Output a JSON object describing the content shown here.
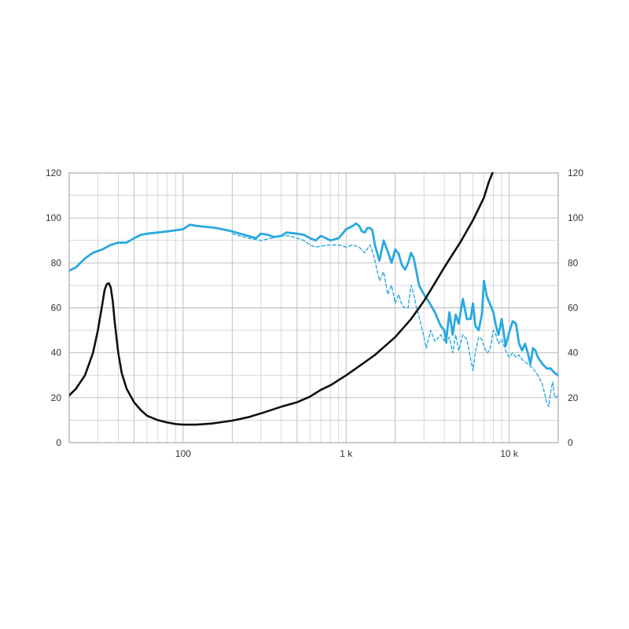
{
  "chart_data": {
    "type": "line",
    "title": "",
    "xlabel": "",
    "ylabel": "",
    "x_scale": "log",
    "xlim": [
      20,
      20000
    ],
    "ylim": [
      0,
      120
    ],
    "grid": true,
    "legend": "none",
    "x_ticks": [
      {
        "value": 100,
        "label": "100"
      },
      {
        "value": 1000,
        "label": "1 k"
      },
      {
        "value": 10000,
        "label": "10 k"
      }
    ],
    "y_ticks_left": [
      "0",
      "20",
      "40",
      "60",
      "80",
      "100",
      "120"
    ],
    "y_ticks_right": [
      "0",
      "20",
      "40",
      "60",
      "80",
      "100",
      "120"
    ],
    "y_tick_values": [
      0,
      20,
      40,
      60,
      80,
      100,
      120
    ],
    "series": [
      {
        "color": "#29a9e0",
        "style": "solid",
        "points": [
          [
            20,
            76.5
          ],
          [
            22,
            78
          ],
          [
            25,
            82
          ],
          [
            28,
            84.5
          ],
          [
            32,
            86
          ],
          [
            36,
            88
          ],
          [
            40,
            89
          ],
          [
            45,
            89
          ],
          [
            50,
            91
          ],
          [
            55,
            92.5
          ],
          [
            60,
            93
          ],
          [
            70,
            93.5
          ],
          [
            80,
            94
          ],
          [
            90,
            94.5
          ],
          [
            100,
            95
          ],
          [
            110,
            97
          ],
          [
            120,
            96.5
          ],
          [
            140,
            96
          ],
          [
            160,
            95.5
          ],
          [
            200,
            94
          ],
          [
            250,
            92
          ],
          [
            280,
            91
          ],
          [
            300,
            93
          ],
          [
            330,
            92.5
          ],
          [
            360,
            91.5
          ],
          [
            400,
            92
          ],
          [
            430,
            93.5
          ],
          [
            500,
            93
          ],
          [
            550,
            92.5
          ],
          [
            600,
            91
          ],
          [
            650,
            90
          ],
          [
            700,
            92
          ],
          [
            750,
            91
          ],
          [
            800,
            90
          ],
          [
            900,
            91
          ],
          [
            1000,
            95
          ],
          [
            1100,
            96.5
          ],
          [
            1150,
            97.5
          ],
          [
            1200,
            96.5
          ],
          [
            1250,
            94
          ],
          [
            1300,
            93.5
          ],
          [
            1350,
            95.5
          ],
          [
            1400,
            95.5
          ],
          [
            1450,
            94.5
          ],
          [
            1500,
            88
          ],
          [
            1600,
            81
          ],
          [
            1700,
            90
          ],
          [
            1800,
            85
          ],
          [
            1900,
            80
          ],
          [
            2000,
            86
          ],
          [
            2100,
            84
          ],
          [
            2200,
            79
          ],
          [
            2300,
            77
          ],
          [
            2400,
            80
          ],
          [
            2500,
            84.5
          ],
          [
            2600,
            82
          ],
          [
            2700,
            76
          ],
          [
            2800,
            70
          ],
          [
            3000,
            66
          ],
          [
            3200,
            63
          ],
          [
            3500,
            58
          ],
          [
            3800,
            52
          ],
          [
            4000,
            50
          ],
          [
            4100,
            45
          ],
          [
            4300,
            58
          ],
          [
            4500,
            48
          ],
          [
            4700,
            57
          ],
          [
            4900,
            53
          ],
          [
            5200,
            64
          ],
          [
            5500,
            55
          ],
          [
            5800,
            55
          ],
          [
            6000,
            62
          ],
          [
            6200,
            52
          ],
          [
            6500,
            50
          ],
          [
            6800,
            57
          ],
          [
            7000,
            72
          ],
          [
            7300,
            65
          ],
          [
            7600,
            62
          ],
          [
            8000,
            58
          ],
          [
            8300,
            52
          ],
          [
            8600,
            48
          ],
          [
            9000,
            55
          ],
          [
            9500,
            43
          ],
          [
            10000,
            49
          ],
          [
            10500,
            54
          ],
          [
            11000,
            53
          ],
          [
            11500,
            44
          ],
          [
            12000,
            41
          ],
          [
            12500,
            44
          ],
          [
            13000,
            40
          ],
          [
            13500,
            35
          ],
          [
            14000,
            42
          ],
          [
            14500,
            41
          ],
          [
            15000,
            38
          ],
          [
            16000,
            35
          ],
          [
            17000,
            33
          ],
          [
            18000,
            33
          ],
          [
            19000,
            31
          ],
          [
            20000,
            30
          ]
        ]
      },
      {
        "color": "#29a9e0",
        "style": "dashed",
        "points": [
          [
            200,
            93
          ],
          [
            250,
            91
          ],
          [
            300,
            90
          ],
          [
            350,
            91
          ],
          [
            400,
            92
          ],
          [
            450,
            92
          ],
          [
            500,
            91
          ],
          [
            550,
            90
          ],
          [
            600,
            88
          ],
          [
            650,
            87
          ],
          [
            700,
            87.5
          ],
          [
            800,
            88
          ],
          [
            900,
            88
          ],
          [
            1000,
            87
          ],
          [
            1100,
            88
          ],
          [
            1200,
            87
          ],
          [
            1300,
            84.5
          ],
          [
            1400,
            88
          ],
          [
            1450,
            85
          ],
          [
            1500,
            81
          ],
          [
            1600,
            72
          ],
          [
            1700,
            76
          ],
          [
            1800,
            66
          ],
          [
            1900,
            70
          ],
          [
            2000,
            62
          ],
          [
            2100,
            66
          ],
          [
            2200,
            61
          ],
          [
            2300,
            60
          ],
          [
            2400,
            60
          ],
          [
            2500,
            70
          ],
          [
            2600,
            66
          ],
          [
            2700,
            60
          ],
          [
            2800,
            56
          ],
          [
            3000,
            47
          ],
          [
            3100,
            42
          ],
          [
            3300,
            50
          ],
          [
            3500,
            45
          ],
          [
            3800,
            48
          ],
          [
            4100,
            44
          ],
          [
            4300,
            47
          ],
          [
            4500,
            40
          ],
          [
            4700,
            48
          ],
          [
            4900,
            41
          ],
          [
            5200,
            48
          ],
          [
            5500,
            46
          ],
          [
            5700,
            40
          ],
          [
            6000,
            32
          ],
          [
            6200,
            40
          ],
          [
            6500,
            47
          ],
          [
            6800,
            46
          ],
          [
            7000,
            43
          ],
          [
            7300,
            40
          ],
          [
            7600,
            41
          ],
          [
            8000,
            50
          ],
          [
            8300,
            48
          ],
          [
            8600,
            44
          ],
          [
            9000,
            46
          ],
          [
            9500,
            41
          ],
          [
            10000,
            38
          ],
          [
            10500,
            40
          ],
          [
            11000,
            38
          ],
          [
            11500,
            39
          ],
          [
            12000,
            37
          ],
          [
            13000,
            35
          ],
          [
            14000,
            33
          ],
          [
            15000,
            30
          ],
          [
            16000,
            26
          ],
          [
            17000,
            18
          ],
          [
            17500,
            16
          ],
          [
            18000,
            23
          ],
          [
            18500,
            27
          ],
          [
            19000,
            20
          ],
          [
            20000,
            21
          ]
        ]
      },
      {
        "color": "#111111",
        "style": "solid",
        "points": [
          [
            20,
            21
          ],
          [
            22,
            24
          ],
          [
            25,
            30
          ],
          [
            28,
            40
          ],
          [
            30,
            50
          ],
          [
            32,
            62
          ],
          [
            33,
            68
          ],
          [
            34,
            70.5
          ],
          [
            35,
            71
          ],
          [
            36,
            69
          ],
          [
            37,
            63
          ],
          [
            38,
            54
          ],
          [
            40,
            40
          ],
          [
            42,
            31
          ],
          [
            45,
            24
          ],
          [
            50,
            18
          ],
          [
            55,
            14.5
          ],
          [
            60,
            12
          ],
          [
            70,
            10
          ],
          [
            80,
            9
          ],
          [
            90,
            8.3
          ],
          [
            100,
            8
          ],
          [
            120,
            8
          ],
          [
            150,
            8.5
          ],
          [
            200,
            9.8
          ],
          [
            250,
            11.3
          ],
          [
            300,
            13
          ],
          [
            400,
            16
          ],
          [
            500,
            18
          ],
          [
            600,
            20.5
          ],
          [
            700,
            23.5
          ],
          [
            800,
            25.5
          ],
          [
            1000,
            30
          ],
          [
            1200,
            34
          ],
          [
            1500,
            39
          ],
          [
            2000,
            47
          ],
          [
            2500,
            55
          ],
          [
            3000,
            63
          ],
          [
            3500,
            71
          ],
          [
            4000,
            78
          ],
          [
            5000,
            89
          ],
          [
            6000,
            99
          ],
          [
            7000,
            109
          ],
          [
            7500,
            116
          ],
          [
            8000,
            121
          ]
        ]
      }
    ]
  }
}
